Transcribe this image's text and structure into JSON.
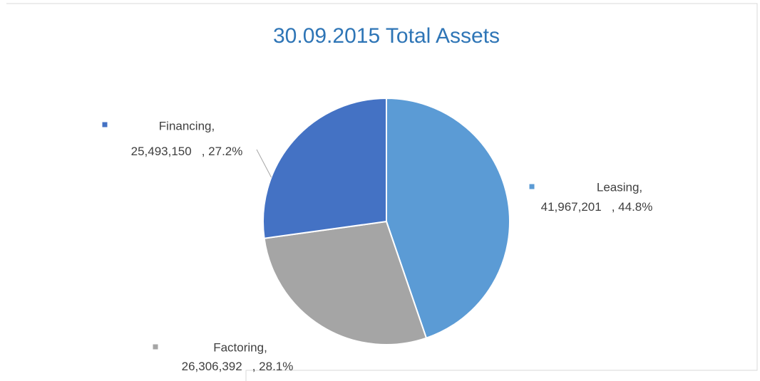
{
  "chart_data": {
    "type": "pie",
    "title": "30.09.2015 Total Assets",
    "categories": [
      "Leasing,",
      "Factoring,",
      "Financing,"
    ],
    "values": [
      41967201,
      26306392,
      25493150
    ],
    "value_labels": [
      "41,967,201",
      "26,306,392",
      "25,493,150"
    ],
    "percent_labels": [
      ", 44.8%",
      ", 28.1%",
      ", 27.2%"
    ],
    "colors": [
      "#5b9bd5",
      "#a5a5a5",
      "#4472c4"
    ]
  }
}
